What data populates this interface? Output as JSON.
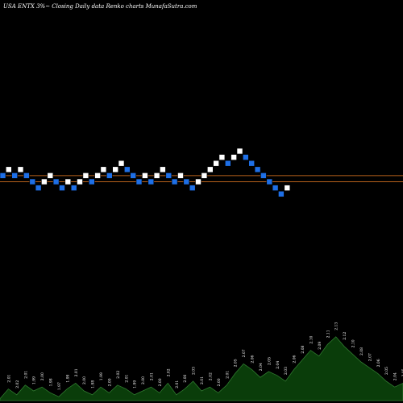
{
  "header": {
    "title": "USA ENTX  3%~ Closing Daily data  Renko  charts MunafaSutra.com"
  },
  "chart_data": {
    "type": "renko",
    "ref_lines": [
      1.0,
      0.0
    ],
    "bricks": [
      {
        "level": 1,
        "dir": "down"
      },
      {
        "level": 2,
        "dir": "up"
      },
      {
        "level": 1,
        "dir": "down"
      },
      {
        "level": 2,
        "dir": "up"
      },
      {
        "level": 1,
        "dir": "down"
      },
      {
        "level": 0,
        "dir": "down"
      },
      {
        "level": -1,
        "dir": "down"
      },
      {
        "level": 0,
        "dir": "up"
      },
      {
        "level": 1,
        "dir": "up"
      },
      {
        "level": 0,
        "dir": "down"
      },
      {
        "level": -1,
        "dir": "down"
      },
      {
        "level": 0,
        "dir": "up"
      },
      {
        "level": -1,
        "dir": "down"
      },
      {
        "level": 0,
        "dir": "up"
      },
      {
        "level": 1,
        "dir": "up"
      },
      {
        "level": 0,
        "dir": "down"
      },
      {
        "level": 1,
        "dir": "up"
      },
      {
        "level": 2,
        "dir": "up"
      },
      {
        "level": 1,
        "dir": "down"
      },
      {
        "level": 2,
        "dir": "up"
      },
      {
        "level": 3,
        "dir": "up"
      },
      {
        "level": 2,
        "dir": "down"
      },
      {
        "level": 1,
        "dir": "down"
      },
      {
        "level": 0,
        "dir": "down"
      },
      {
        "level": 1,
        "dir": "up"
      },
      {
        "level": 0,
        "dir": "down"
      },
      {
        "level": 1,
        "dir": "up"
      },
      {
        "level": 2,
        "dir": "up"
      },
      {
        "level": 1,
        "dir": "down"
      },
      {
        "level": 0,
        "dir": "down"
      },
      {
        "level": 1,
        "dir": "up"
      },
      {
        "level": 0,
        "dir": "down"
      },
      {
        "level": -1,
        "dir": "down"
      },
      {
        "level": 0,
        "dir": "up"
      },
      {
        "level": 1,
        "dir": "up"
      },
      {
        "level": 2,
        "dir": "up"
      },
      {
        "level": 3,
        "dir": "up"
      },
      {
        "level": 4,
        "dir": "up"
      },
      {
        "level": 3,
        "dir": "down"
      },
      {
        "level": 4,
        "dir": "up"
      },
      {
        "level": 5,
        "dir": "up"
      },
      {
        "level": 4,
        "dir": "down"
      },
      {
        "level": 3,
        "dir": "down"
      },
      {
        "level": 2,
        "dir": "down"
      },
      {
        "level": 1,
        "dir": "down"
      },
      {
        "level": 0,
        "dir": "down"
      },
      {
        "level": -1,
        "dir": "down"
      },
      {
        "level": -2,
        "dir": "down"
      },
      {
        "level": -1,
        "dir": "up"
      }
    ],
    "volume": [
      {
        "value": 0.1,
        "label": ""
      },
      {
        "value": 0.6,
        "label": "2.01"
      },
      {
        "value": 0.3,
        "label": "2.02"
      },
      {
        "value": 0.8,
        "label": "2.01"
      },
      {
        "value": 0.5,
        "label": "1.99"
      },
      {
        "value": 0.7,
        "label": "2.00"
      },
      {
        "value": 0.4,
        "label": "1.98"
      },
      {
        "value": 0.2,
        "label": "1.97"
      },
      {
        "value": 0.6,
        "label": "1.99"
      },
      {
        "value": 0.9,
        "label": "2.01"
      },
      {
        "value": 0.5,
        "label": "2.00"
      },
      {
        "value": 0.3,
        "label": "1.98"
      },
      {
        "value": 0.7,
        "label": "1.99"
      },
      {
        "value": 0.4,
        "label": "2.00"
      },
      {
        "value": 0.8,
        "label": "2.02"
      },
      {
        "value": 0.6,
        "label": "2.01"
      },
      {
        "value": 0.3,
        "label": "1.99"
      },
      {
        "value": 0.5,
        "label": "2.00"
      },
      {
        "value": 0.7,
        "label": "2.01"
      },
      {
        "value": 0.4,
        "label": "2.00"
      },
      {
        "value": 0.9,
        "label": "2.02"
      },
      {
        "value": 0.3,
        "label": "2.01"
      },
      {
        "value": 0.6,
        "label": "2.00"
      },
      {
        "value": 1.0,
        "label": "2.03"
      },
      {
        "value": 0.5,
        "label": "2.01"
      },
      {
        "value": 0.7,
        "label": "2.02"
      },
      {
        "value": 0.4,
        "label": "2.00"
      },
      {
        "value": 0.8,
        "label": "2.01"
      },
      {
        "value": 1.4,
        "label": "2.05"
      },
      {
        "value": 1.9,
        "label": "2.07"
      },
      {
        "value": 1.6,
        "label": "2.06"
      },
      {
        "value": 1.2,
        "label": "2.04"
      },
      {
        "value": 1.5,
        "label": "2.05"
      },
      {
        "value": 1.3,
        "label": "2.04"
      },
      {
        "value": 1.0,
        "label": "2.03"
      },
      {
        "value": 1.6,
        "label": "2.06"
      },
      {
        "value": 2.1,
        "label": "2.08"
      },
      {
        "value": 2.6,
        "label": "2.10"
      },
      {
        "value": 2.3,
        "label": "2.09"
      },
      {
        "value": 2.9,
        "label": "2.11"
      },
      {
        "value": 3.3,
        "label": "2.13"
      },
      {
        "value": 2.8,
        "label": "2.12"
      },
      {
        "value": 2.4,
        "label": "2.10"
      },
      {
        "value": 2.0,
        "label": "2.08"
      },
      {
        "value": 1.7,
        "label": "2.07"
      },
      {
        "value": 1.4,
        "label": "2.06"
      },
      {
        "value": 1.0,
        "label": "2.05"
      },
      {
        "value": 0.7,
        "label": "2.04"
      },
      {
        "value": 0.9,
        "label": "2.05"
      }
    ]
  },
  "colors": {
    "background": "#000000",
    "up_brick": "#ffffff",
    "down_brick": "#1e6fe6",
    "ref_line": "#b8621b",
    "volume_fill": "#0a3d0a",
    "volume_stroke": "#2f7a2f",
    "text": "#ffffff"
  }
}
